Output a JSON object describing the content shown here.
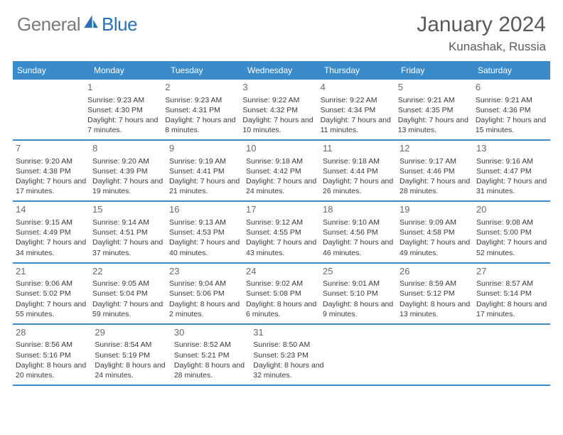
{
  "brand": {
    "g": "General",
    "b": "Blue"
  },
  "title": "January 2024",
  "location": "Kunashak, Russia",
  "header_bg": "#3b8bca",
  "border_color": "#3b8bca",
  "text_color": "#3a3a3a",
  "daynames": [
    "Sunday",
    "Monday",
    "Tuesday",
    "Wednesday",
    "Thursday",
    "Friday",
    "Saturday"
  ],
  "weeks": [
    [
      null,
      {
        "num": "1",
        "sunrise": "Sunrise: 9:23 AM",
        "sunset": "Sunset: 4:30 PM",
        "daylight": "Daylight: 7 hours and 7 minutes."
      },
      {
        "num": "2",
        "sunrise": "Sunrise: 9:23 AM",
        "sunset": "Sunset: 4:31 PM",
        "daylight": "Daylight: 7 hours and 8 minutes."
      },
      {
        "num": "3",
        "sunrise": "Sunrise: 9:22 AM",
        "sunset": "Sunset: 4:32 PM",
        "daylight": "Daylight: 7 hours and 10 minutes."
      },
      {
        "num": "4",
        "sunrise": "Sunrise: 9:22 AM",
        "sunset": "Sunset: 4:34 PM",
        "daylight": "Daylight: 7 hours and 11 minutes."
      },
      {
        "num": "5",
        "sunrise": "Sunrise: 9:21 AM",
        "sunset": "Sunset: 4:35 PM",
        "daylight": "Daylight: 7 hours and 13 minutes."
      },
      {
        "num": "6",
        "sunrise": "Sunrise: 9:21 AM",
        "sunset": "Sunset: 4:36 PM",
        "daylight": "Daylight: 7 hours and 15 minutes."
      }
    ],
    [
      {
        "num": "7",
        "sunrise": "Sunrise: 9:20 AM",
        "sunset": "Sunset: 4:38 PM",
        "daylight": "Daylight: 7 hours and 17 minutes."
      },
      {
        "num": "8",
        "sunrise": "Sunrise: 9:20 AM",
        "sunset": "Sunset: 4:39 PM",
        "daylight": "Daylight: 7 hours and 19 minutes."
      },
      {
        "num": "9",
        "sunrise": "Sunrise: 9:19 AM",
        "sunset": "Sunset: 4:41 PM",
        "daylight": "Daylight: 7 hours and 21 minutes."
      },
      {
        "num": "10",
        "sunrise": "Sunrise: 9:18 AM",
        "sunset": "Sunset: 4:42 PM",
        "daylight": "Daylight: 7 hours and 24 minutes."
      },
      {
        "num": "11",
        "sunrise": "Sunrise: 9:18 AM",
        "sunset": "Sunset: 4:44 PM",
        "daylight": "Daylight: 7 hours and 26 minutes."
      },
      {
        "num": "12",
        "sunrise": "Sunrise: 9:17 AM",
        "sunset": "Sunset: 4:46 PM",
        "daylight": "Daylight: 7 hours and 28 minutes."
      },
      {
        "num": "13",
        "sunrise": "Sunrise: 9:16 AM",
        "sunset": "Sunset: 4:47 PM",
        "daylight": "Daylight: 7 hours and 31 minutes."
      }
    ],
    [
      {
        "num": "14",
        "sunrise": "Sunrise: 9:15 AM",
        "sunset": "Sunset: 4:49 PM",
        "daylight": "Daylight: 7 hours and 34 minutes."
      },
      {
        "num": "15",
        "sunrise": "Sunrise: 9:14 AM",
        "sunset": "Sunset: 4:51 PM",
        "daylight": "Daylight: 7 hours and 37 minutes."
      },
      {
        "num": "16",
        "sunrise": "Sunrise: 9:13 AM",
        "sunset": "Sunset: 4:53 PM",
        "daylight": "Daylight: 7 hours and 40 minutes."
      },
      {
        "num": "17",
        "sunrise": "Sunrise: 9:12 AM",
        "sunset": "Sunset: 4:55 PM",
        "daylight": "Daylight: 7 hours and 43 minutes."
      },
      {
        "num": "18",
        "sunrise": "Sunrise: 9:10 AM",
        "sunset": "Sunset: 4:56 PM",
        "daylight": "Daylight: 7 hours and 46 minutes."
      },
      {
        "num": "19",
        "sunrise": "Sunrise: 9:09 AM",
        "sunset": "Sunset: 4:58 PM",
        "daylight": "Daylight: 7 hours and 49 minutes."
      },
      {
        "num": "20",
        "sunrise": "Sunrise: 9:08 AM",
        "sunset": "Sunset: 5:00 PM",
        "daylight": "Daylight: 7 hours and 52 minutes."
      }
    ],
    [
      {
        "num": "21",
        "sunrise": "Sunrise: 9:06 AM",
        "sunset": "Sunset: 5:02 PM",
        "daylight": "Daylight: 7 hours and 55 minutes."
      },
      {
        "num": "22",
        "sunrise": "Sunrise: 9:05 AM",
        "sunset": "Sunset: 5:04 PM",
        "daylight": "Daylight: 7 hours and 59 minutes."
      },
      {
        "num": "23",
        "sunrise": "Sunrise: 9:04 AM",
        "sunset": "Sunset: 5:06 PM",
        "daylight": "Daylight: 8 hours and 2 minutes."
      },
      {
        "num": "24",
        "sunrise": "Sunrise: 9:02 AM",
        "sunset": "Sunset: 5:08 PM",
        "daylight": "Daylight: 8 hours and 6 minutes."
      },
      {
        "num": "25",
        "sunrise": "Sunrise: 9:01 AM",
        "sunset": "Sunset: 5:10 PM",
        "daylight": "Daylight: 8 hours and 9 minutes."
      },
      {
        "num": "26",
        "sunrise": "Sunrise: 8:59 AM",
        "sunset": "Sunset: 5:12 PM",
        "daylight": "Daylight: 8 hours and 13 minutes."
      },
      {
        "num": "27",
        "sunrise": "Sunrise: 8:57 AM",
        "sunset": "Sunset: 5:14 PM",
        "daylight": "Daylight: 8 hours and 17 minutes."
      }
    ],
    [
      {
        "num": "28",
        "sunrise": "Sunrise: 8:56 AM",
        "sunset": "Sunset: 5:16 PM",
        "daylight": "Daylight: 8 hours and 20 minutes."
      },
      {
        "num": "29",
        "sunrise": "Sunrise: 8:54 AM",
        "sunset": "Sunset: 5:19 PM",
        "daylight": "Daylight: 8 hours and 24 minutes."
      },
      {
        "num": "30",
        "sunrise": "Sunrise: 8:52 AM",
        "sunset": "Sunset: 5:21 PM",
        "daylight": "Daylight: 8 hours and 28 minutes."
      },
      {
        "num": "31",
        "sunrise": "Sunrise: 8:50 AM",
        "sunset": "Sunset: 5:23 PM",
        "daylight": "Daylight: 8 hours and 32 minutes."
      },
      null,
      null,
      null
    ]
  ]
}
